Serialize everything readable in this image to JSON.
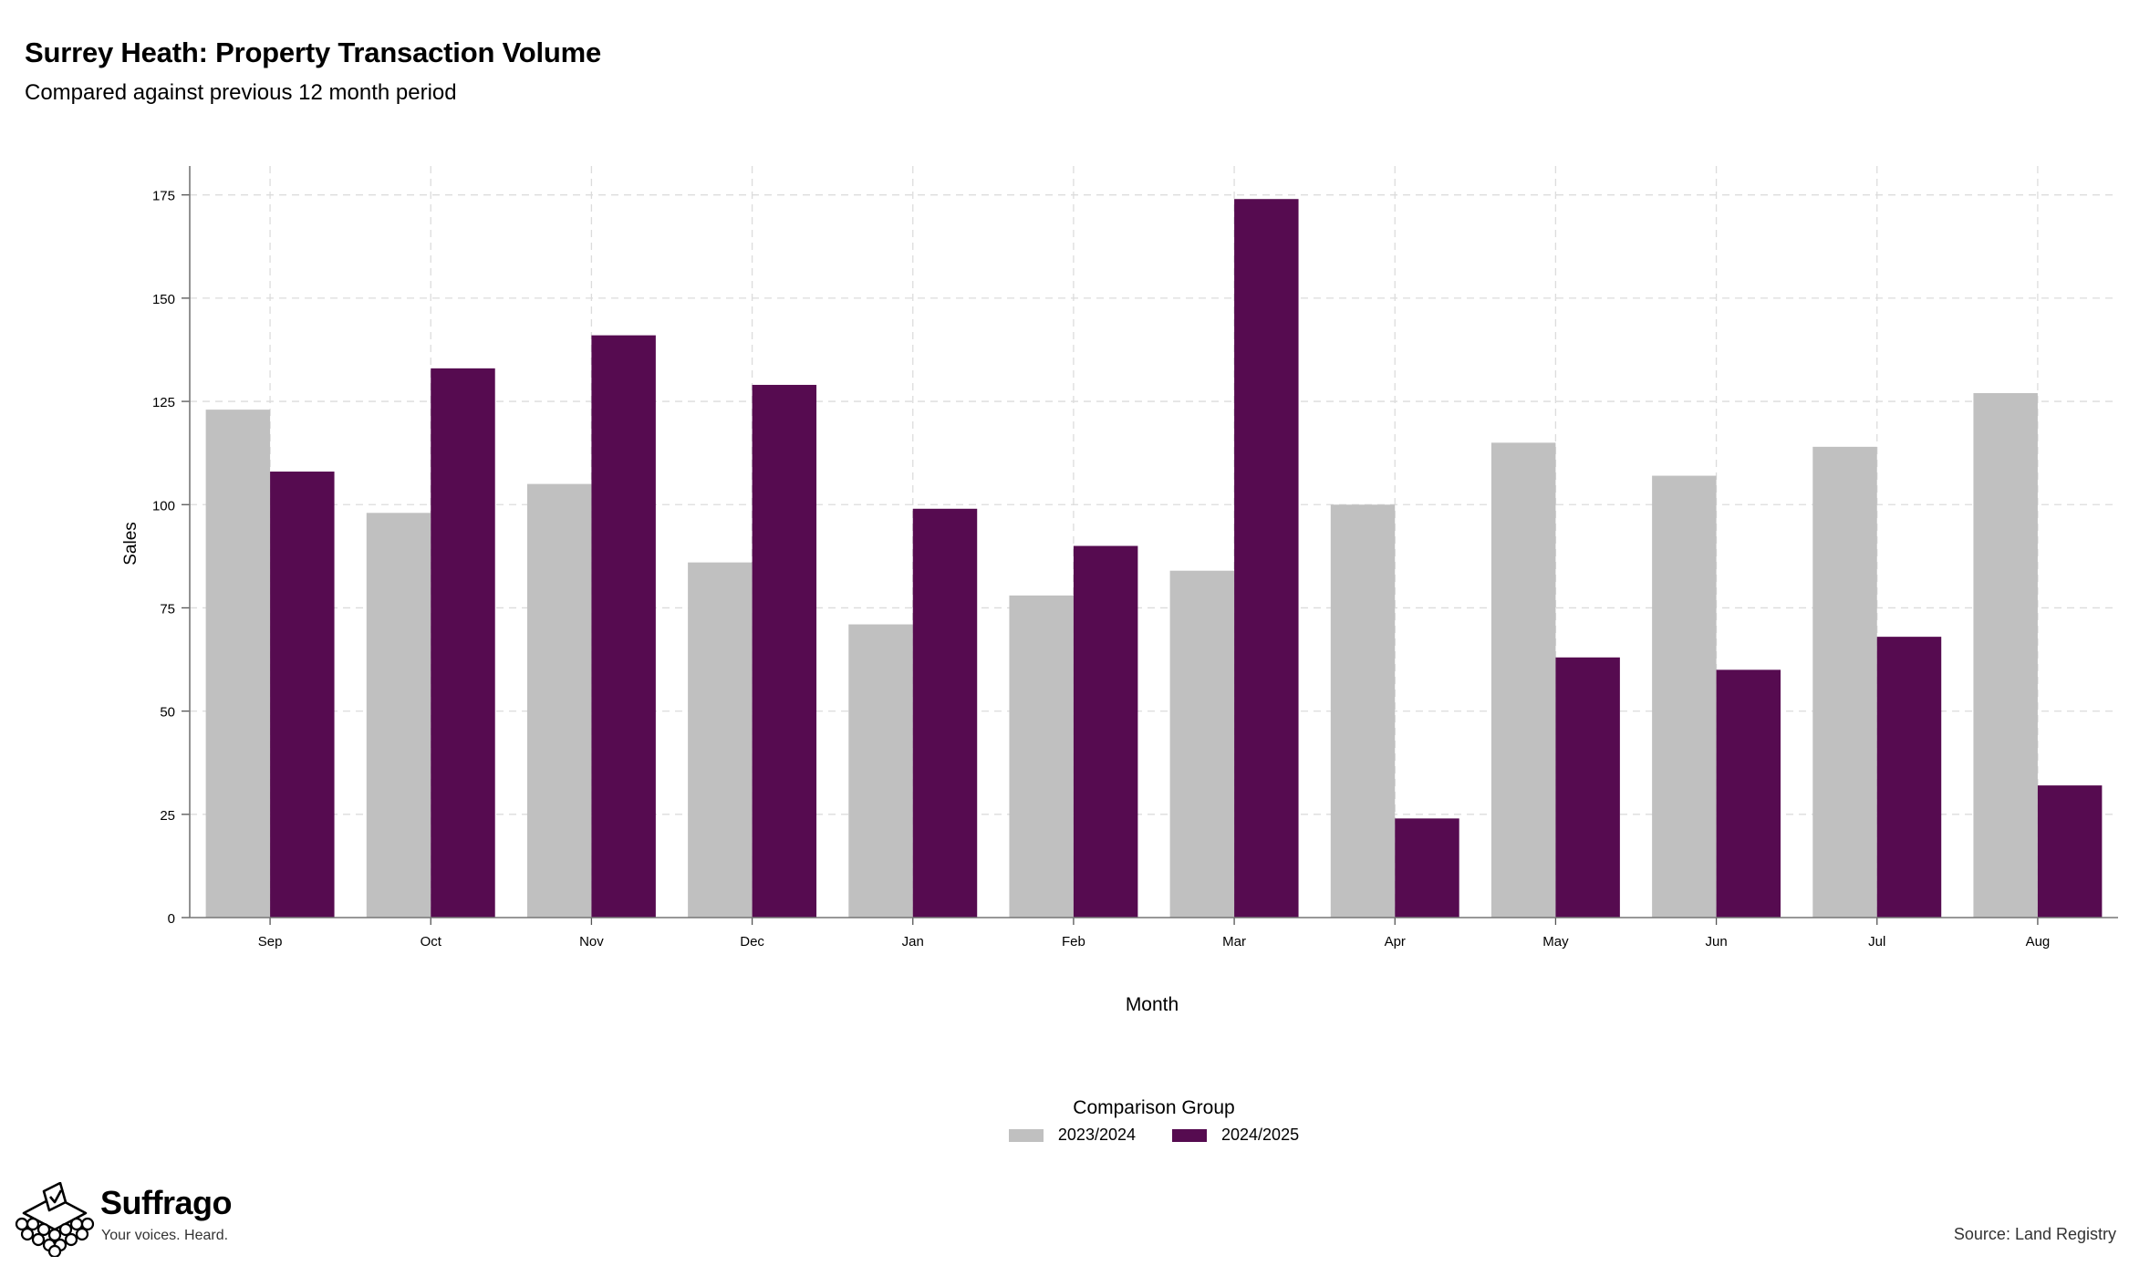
{
  "chart_data": {
    "type": "bar",
    "title": "Surrey Heath: Property Transaction Volume",
    "subtitle": "Compared against previous 12 month period",
    "xlabel": "Month",
    "ylabel": "Sales",
    "categories": [
      "Sep",
      "Oct",
      "Nov",
      "Dec",
      "Jan",
      "Feb",
      "Mar",
      "Apr",
      "May",
      "Jun",
      "Jul",
      "Aug"
    ],
    "series": [
      {
        "name": "2023/2024",
        "color": "#c0c0c0",
        "values": [
          123,
          98,
          105,
          86,
          71,
          78,
          84,
          100,
          115,
          107,
          114,
          127
        ]
      },
      {
        "name": "2024/2025",
        "color": "#560b50",
        "values": [
          108,
          133,
          141,
          129,
          99,
          90,
          174,
          24,
          63,
          60,
          68,
          32
        ]
      }
    ],
    "ylim": [
      0,
      182
    ],
    "yticks": [
      0,
      25,
      50,
      75,
      100,
      125,
      150,
      175
    ],
    "grid": true,
    "legend_title": "Comparison Group",
    "legend_position": "bottom"
  },
  "branding": {
    "name": "Suffrago",
    "tagline": "Your voices. Heard.",
    "logo_icon": "ballot-box-icon"
  },
  "source": "Source: Land Registry"
}
